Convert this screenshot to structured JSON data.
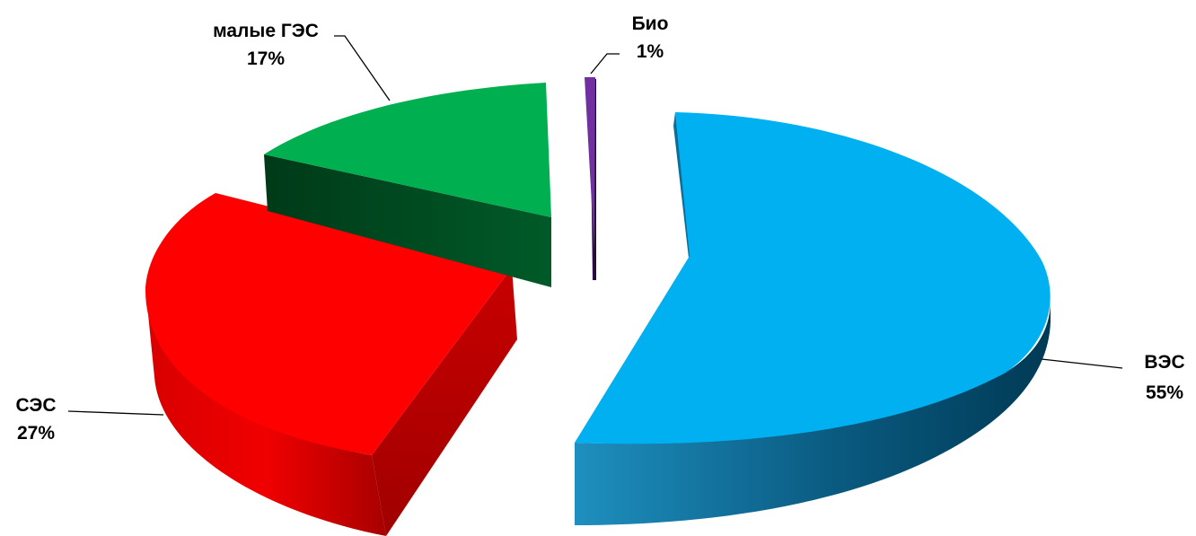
{
  "chart_data": {
    "type": "pie",
    "style": "3d-exploded",
    "title": "",
    "slices": [
      {
        "name": "ВЭС",
        "value": 55,
        "label": "55%",
        "color": "#00B0F0",
        "side_color": "#00577A"
      },
      {
        "name": "СЭС",
        "value": 27,
        "label": "27%",
        "color": "#FF0000",
        "side_color": "#B30000"
      },
      {
        "name": "малые ГЭС",
        "value": 17,
        "label": "17%",
        "color": "#00B050",
        "side_color": "#004D22"
      },
      {
        "name": "Био",
        "value": 1,
        "label": "1%",
        "color": "#7030A0",
        "side_color": "#2E1145"
      }
    ],
    "legend": "none"
  }
}
